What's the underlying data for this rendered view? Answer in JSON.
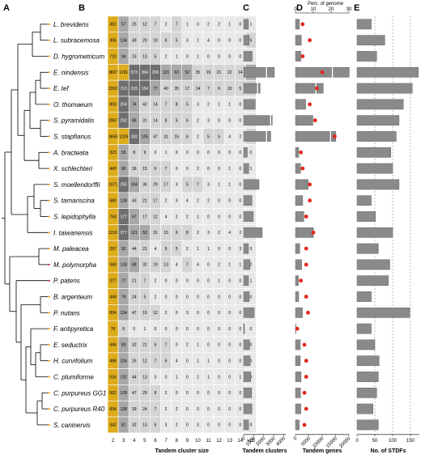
{
  "panels": [
    "A",
    "B",
    "C",
    "D",
    "E"
  ],
  "colors": {
    "gold": "#dcac1c",
    "dark": "#6e6e6e",
    "mid": "#a8a8a8",
    "light": "#d4d4d4",
    "faint": "#e8e8e8",
    "bar": "#8a8a8a",
    "dot": "#e0281e",
    "tip_marker": "#e8a020",
    "tip_marker2": "#c0305a"
  },
  "chart_data": [
    {
      "panel": "B",
      "type": "heatmap",
      "xlabel": "Tandem cluster size",
      "columns": [
        "2",
        "3",
        "4",
        "5",
        "6",
        "7",
        "8",
        "9",
        "10",
        "11",
        "12",
        "13",
        "14",
        "≥15"
      ],
      "species": [
        "L. brevidens",
        "L. subracemosa",
        "D. hygrometricum",
        "E. nindensis",
        "E. tef",
        "O. thomaeum",
        "S. pyramidalis",
        "S. stapfianus",
        "A. bracteata",
        "X. schlechteri",
        "S. moellendorffii",
        "S. tamariscina",
        "S. lepidophylla",
        "I. taiwanensis",
        "M. paleacea",
        "M. polymorpha",
        "P. patens",
        "B. argenteum",
        "P. nutans",
        "F. antipyretica",
        "E. seductrix",
        "H. curvifolium",
        "C. plumiforme",
        "C. purpureus GG1",
        "C. purpureus R40",
        "S. caninervis"
      ],
      "rows": [
        [
          "362",
          "57",
          "25",
          "12",
          "7",
          "2",
          "7",
          "1",
          "3",
          "2",
          "2",
          "1",
          "0",
          "1"
        ],
        [
          "306",
          "134",
          "49",
          "20",
          "19",
          "6",
          "5",
          "3",
          "1",
          "4",
          "0",
          "0",
          "0",
          "5"
        ],
        [
          "710",
          "94",
          "23",
          "13",
          "5",
          "2",
          "1",
          "0",
          "1",
          "0",
          "0",
          "0",
          "0",
          "0"
        ],
        [
          "3837",
          "1291",
          "573",
          "304",
          "206",
          "121",
          "63",
          "52",
          "35",
          "19",
          "21",
          "22",
          "14",
          "58"
        ],
        [
          "2202",
          "713",
          "315",
          "154",
          "77",
          "40",
          "35",
          "17",
          "14",
          "7",
          "6",
          "10",
          "5",
          "14"
        ],
        [
          "803",
          "204",
          "74",
          "42",
          "14",
          "7",
          "8",
          "5",
          "3",
          "2",
          "1",
          "1",
          "0",
          "2"
        ],
        [
          "2067",
          "292",
          "86",
          "31",
          "14",
          "8",
          "5",
          "6",
          "2",
          "3",
          "0",
          "0",
          "0",
          "1"
        ],
        [
          "3658",
          "1029",
          "282",
          "105",
          "47",
          "31",
          "15",
          "6",
          "2",
          "5",
          "5",
          "4",
          "2",
          "6"
        ],
        [
          "323",
          "55",
          "8",
          "9",
          "0",
          "1",
          "0",
          "0",
          "0",
          "0",
          "0",
          "0",
          "0",
          "0"
        ],
        [
          "443",
          "90",
          "36",
          "15",
          "6",
          "7",
          "0",
          "0",
          "2",
          "0",
          "0",
          "1",
          "0",
          "1"
        ],
        [
          "1071",
          "255",
          "104",
          "36",
          "29",
          "17",
          "3",
          "5",
          "7",
          "3",
          "1",
          "1",
          "0",
          "0"
        ],
        [
          "580",
          "128",
          "43",
          "21",
          "17",
          "2",
          "3",
          "4",
          "2",
          "2",
          "0",
          "0",
          "0",
          "0"
        ],
        [
          "763",
          "177",
          "67",
          "17",
          "12",
          "4",
          "2",
          "2",
          "1",
          "0",
          "0",
          "0",
          "0",
          "0"
        ],
        [
          "1216",
          "377",
          "121",
          "52",
          "31",
          "15",
          "9",
          "8",
          "2",
          "3",
          "2",
          "4",
          "2",
          "3"
        ],
        [
          "297",
          "92",
          "44",
          "21",
          "4",
          "5",
          "5",
          "2",
          "1",
          "1",
          "0",
          "0",
          "3",
          "0"
        ],
        [
          "340",
          "133",
          "68",
          "32",
          "19",
          "13",
          "4",
          "7",
          "4",
          "0",
          "2",
          "1",
          "1",
          "2"
        ],
        [
          "377",
          "77",
          "21",
          "7",
          "2",
          "0",
          "0",
          "0",
          "0",
          "0",
          "1",
          "0",
          "0",
          "1"
        ],
        [
          "449",
          "79",
          "24",
          "5",
          "2",
          "0",
          "0",
          "0",
          "0",
          "0",
          "0",
          "0",
          "0",
          "0"
        ],
        [
          "824",
          "134",
          "47",
          "19",
          "12",
          "2",
          "0",
          "3",
          "0",
          "0",
          "0",
          "0",
          "0",
          "0"
        ],
        [
          "76",
          "8",
          "0",
          "1",
          "0",
          "0",
          "0",
          "0",
          "0",
          "0",
          "0",
          "0",
          "0",
          "0"
        ],
        [
          "446",
          "83",
          "32",
          "21",
          "6",
          "7",
          "0",
          "2",
          "1",
          "0",
          "0",
          "0",
          "0",
          "0"
        ],
        [
          "488",
          "106",
          "25",
          "12",
          "7",
          "6",
          "4",
          "0",
          "1",
          "1",
          "0",
          "0",
          "0",
          "0"
        ],
        [
          "516",
          "132",
          "44",
          "13",
          "3",
          "0",
          "1",
          "0",
          "2",
          "1",
          "0",
          "0",
          "1",
          "0"
        ],
        [
          "562",
          "129",
          "47",
          "29",
          "8",
          "2",
          "0",
          "0",
          "0",
          "0",
          "0",
          "0",
          "0",
          "0"
        ],
        [
          "604",
          "138",
          "39",
          "24",
          "7",
          "2",
          "2",
          "0",
          "0",
          "0",
          "0",
          "0",
          "0",
          "0"
        ],
        [
          "342",
          "81",
          "32",
          "13",
          "6",
          "3",
          "2",
          "0",
          "3",
          "0",
          "0",
          "0",
          "0",
          "0"
        ]
      ]
    },
    {
      "panel": "C",
      "type": "bar",
      "xlabel": "Tandem clusters",
      "xticks": [
        "0",
        "1000",
        "2000",
        "3000",
        "4000"
      ],
      "xlim": [
        0,
        4200
      ],
      "series_main": [
        478,
        551,
        849,
        2200,
        1300,
        1160,
        2600,
        2200,
        362,
        510,
        1530,
        828,
        960,
        1850,
        475,
        630,
        485,
        560,
        1050,
        85,
        600,
        650,
        710,
        780,
        820,
        490
      ],
      "series_extra": [
        0,
        0,
        0,
        700,
        180,
        0,
        90,
        340,
        0,
        0,
        0,
        0,
        0,
        0,
        0,
        0,
        0,
        0,
        0,
        0,
        0,
        0,
        0,
        0,
        0,
        0
      ]
    },
    {
      "panel": "D",
      "type": "bar",
      "xlabel": "Tandem genes",
      "top_axis_label": "Perc. of genome",
      "xticks": [
        "0",
        "5000",
        "10000",
        "15000",
        "20000"
      ],
      "xlim": [
        0,
        20000
      ],
      "top_ticks": [
        "0",
        "10",
        "20",
        "30"
      ],
      "top_lim": [
        0,
        30
      ],
      "genes": [
        1500,
        2200,
        2000,
        13500,
        7300,
        3800,
        6500,
        12800,
        1200,
        1900,
        4800,
        2700,
        3100,
        6700,
        1600,
        2300,
        1100,
        1200,
        2600,
        170,
        1800,
        1800,
        2100,
        1900,
        2000,
        1400
      ],
      "genes_extra": [
        0,
        0,
        0,
        6000,
        2500,
        0,
        0,
        1700,
        0,
        0,
        0,
        0,
        0,
        0,
        0,
        0,
        0,
        0,
        0,
        0,
        0,
        0,
        0,
        0,
        0,
        0
      ],
      "percent": [
        4,
        8,
        4,
        15,
        12,
        8,
        11,
        22,
        3,
        4,
        8,
        8,
        6,
        10,
        6,
        6,
        3,
        6,
        7,
        1,
        5,
        6,
        6,
        5,
        6,
        5
      ]
    },
    {
      "panel": "E",
      "type": "bar",
      "xlabel": "No. of STDFs",
      "xticks": [
        "0",
        "50",
        "100",
        "150"
      ],
      "xlim": [
        0,
        175
      ],
      "values": [
        40,
        78,
        55,
        172,
        155,
        130,
        118,
        110,
        95,
        100,
        118,
        40,
        52,
        100,
        60,
        92,
        88,
        40,
        148,
        40,
        50,
        62,
        60,
        55,
        45,
        60
      ]
    }
  ]
}
